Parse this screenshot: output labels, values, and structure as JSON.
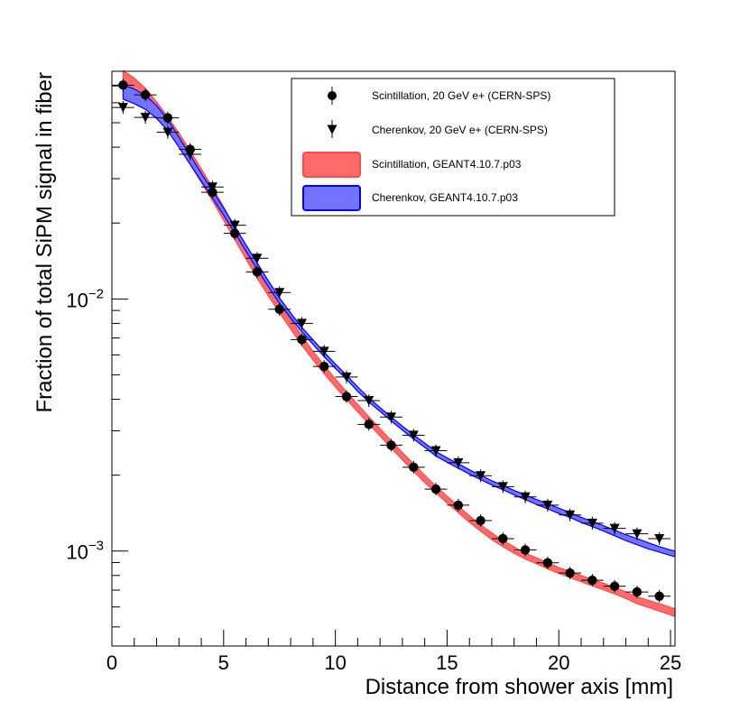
{
  "chart_data": {
    "type": "scatter",
    "title": "",
    "xlabel": "Distance from shower axis [mm]",
    "ylabel": "Fraction of total SiPM signal in fiber",
    "xlim": [
      0,
      25.2
    ],
    "ylim": [
      0.00042,
      0.08
    ],
    "yscale": "log",
    "x_ticks": [
      0,
      5,
      10,
      15,
      20,
      25
    ],
    "y_tick_labels": [
      {
        "value": 0.01,
        "base": "10",
        "exp": "−2"
      },
      {
        "value": 0.001,
        "base": "10",
        "exp": "−3"
      }
    ],
    "legend_position": "top-right",
    "series": [
      {
        "name": "Scintillation, 20 GeV e+ (CERN-SPS)",
        "kind": "points",
        "marker": "circle",
        "color": "#000000",
        "x": [
          0.5,
          1.5,
          2.5,
          3.5,
          4.5,
          5.5,
          6.5,
          7.5,
          8.5,
          9.5,
          10.5,
          11.5,
          12.5,
          13.5,
          14.5,
          15.5,
          16.5,
          17.5,
          18.5,
          19.5,
          20.5,
          21.5,
          22.5,
          23.5,
          24.5
        ],
        "y": [
          0.0705,
          0.0645,
          0.0523,
          0.0392,
          0.0265,
          0.0182,
          0.0128,
          0.0091,
          0.0069,
          0.0054,
          0.0041,
          0.00318,
          0.00263,
          0.00215,
          0.00176,
          0.00152,
          0.00132,
          0.00112,
          0.00101,
          0.000898,
          0.000818,
          0.000766,
          0.000725,
          0.000688,
          0.000662
        ]
      },
      {
        "name": "Cherenkov, 20 GeV e+ (CERN-SPS)",
        "kind": "points",
        "marker": "triangle-down",
        "color": "#000000",
        "x": [
          0.5,
          1.5,
          2.5,
          3.5,
          4.5,
          5.5,
          6.5,
          7.5,
          8.5,
          9.5,
          10.5,
          11.5,
          12.5,
          13.5,
          14.5,
          15.5,
          16.5,
          17.5,
          18.5,
          19.5,
          20.5,
          21.5,
          22.5,
          23.5,
          24.5
        ],
        "y": [
          0.0575,
          0.0525,
          0.0458,
          0.0375,
          0.0278,
          0.0196,
          0.0145,
          0.0106,
          0.008,
          0.0062,
          0.0049,
          0.00395,
          0.0034,
          0.00288,
          0.0025,
          0.00224,
          0.00199,
          0.0018,
          0.00164,
          0.00152,
          0.00139,
          0.00129,
          0.00123,
          0.00117,
          0.00112
        ]
      },
      {
        "name": "Scintillation, GEANT4.10.7.p03",
        "kind": "band",
        "fill": "#ff6b6b",
        "stroke": "#ff4b4b",
        "x": [
          0.5,
          1,
          1.5,
          2,
          2.5,
          3,
          3.5,
          4,
          4.5,
          5,
          5.5,
          6,
          6.5,
          7,
          7.5,
          8,
          8.5,
          9,
          9.5,
          10,
          10.5,
          11,
          11.5,
          12,
          12.5,
          13,
          13.5,
          14,
          14.5,
          15,
          15.5,
          16,
          16.5,
          17,
          17.5,
          18,
          18.5,
          19,
          19.5,
          20,
          20.5,
          21,
          21.5,
          22,
          22.5,
          23,
          23.5,
          24,
          24.5,
          25,
          25.2
        ],
        "y_low": [
          0.0705,
          0.0665,
          0.0605,
          0.0535,
          0.0465,
          0.04,
          0.0342,
          0.029,
          0.0245,
          0.0205,
          0.0172,
          0.0144,
          0.0121,
          0.0103,
          0.0088,
          0.0076,
          0.00655,
          0.00573,
          0.00505,
          0.00448,
          0.00399,
          0.00357,
          0.00319,
          0.00286,
          0.00256,
          0.0023,
          0.00207,
          0.00187,
          0.0017,
          0.00155,
          0.00142,
          0.0013,
          0.0012,
          0.00111,
          0.00104,
          0.00098,
          0.00093,
          0.00089,
          0.00085,
          0.000815,
          0.000785,
          0.000755,
          0.000728,
          0.000702,
          0.000676,
          0.000648,
          0.000618,
          0.000598,
          0.000578,
          0.000558,
          0.00055
        ],
        "y_high": [
          0.0805,
          0.0752,
          0.0685,
          0.0605,
          0.0528,
          0.0455,
          0.0388,
          0.0328,
          0.0277,
          0.0232,
          0.0193,
          0.0162,
          0.0135,
          0.0114,
          0.0097,
          0.0083,
          0.00715,
          0.0062,
          0.00545,
          0.00482,
          0.00428,
          0.00382,
          0.00341,
          0.00306,
          0.00274,
          0.00246,
          0.00222,
          0.002,
          0.00181,
          0.00165,
          0.00151,
          0.00138,
          0.00127,
          0.00118,
          0.0011,
          0.00104,
          0.00098,
          0.00094,
          0.0009,
          0.00086,
          0.00083,
          0.0008,
          0.000772,
          0.000745,
          0.000718,
          0.000688,
          0.000658,
          0.000638,
          0.000618,
          0.000598,
          0.00059
        ]
      },
      {
        "name": "Cherenkov, GEANT4.10.7.p03",
        "kind": "band",
        "fill": "#7373ff",
        "stroke": "#0000ff",
        "x": [
          0.5,
          1,
          1.5,
          2,
          2.5,
          3,
          3.5,
          4,
          4.5,
          5,
          5.5,
          6,
          6.5,
          7,
          7.5,
          8,
          8.5,
          9,
          9.5,
          10,
          10.5,
          11,
          11.5,
          12,
          12.5,
          13,
          13.5,
          14,
          14.5,
          15,
          15.5,
          16,
          16.5,
          17,
          17.5,
          18,
          18.5,
          19,
          19.5,
          20,
          20.5,
          21,
          21.5,
          22,
          22.5,
          23,
          23.5,
          24,
          24.5,
          25,
          25.2
        ],
        "y_low": [
          0.062,
          0.0595,
          0.0565,
          0.052,
          0.0465,
          0.04,
          0.0342,
          0.0293,
          0.0252,
          0.0215,
          0.0183,
          0.0155,
          0.0131,
          0.0112,
          0.0096,
          0.0084,
          0.0074,
          0.0066,
          0.0059,
          0.0053,
          0.0048,
          0.0043,
          0.0039,
          0.00358,
          0.00328,
          0.00302,
          0.00278,
          0.00258,
          0.00238,
          0.00225,
          0.00213,
          0.00202,
          0.00192,
          0.00183,
          0.00175,
          0.00167,
          0.0016,
          0.00153,
          0.00147,
          0.00141,
          0.00136,
          0.0013,
          0.00125,
          0.0012,
          0.00115,
          0.0011,
          0.00106,
          0.00102,
          0.00099,
          0.00096,
          0.00095
        ],
        "y_high": [
          0.0708,
          0.068,
          0.0642,
          0.0585,
          0.0515,
          0.0438,
          0.0372,
          0.0315,
          0.0269,
          0.0229,
          0.0194,
          0.0164,
          0.0139,
          0.0118,
          0.0101,
          0.0088,
          0.00772,
          0.00688,
          0.00615,
          0.00552,
          0.00498,
          0.00448,
          0.00405,
          0.00371,
          0.0034,
          0.00313,
          0.00289,
          0.00268,
          0.00248,
          0.00234,
          0.00222,
          0.0021,
          0.002,
          0.0019,
          0.00182,
          0.00174,
          0.00167,
          0.0016,
          0.00154,
          0.00148,
          0.00142,
          0.00136,
          0.00131,
          0.00126,
          0.00121,
          0.00116,
          0.00112,
          0.00108,
          0.00104,
          0.00101,
          0.001
        ]
      }
    ]
  }
}
